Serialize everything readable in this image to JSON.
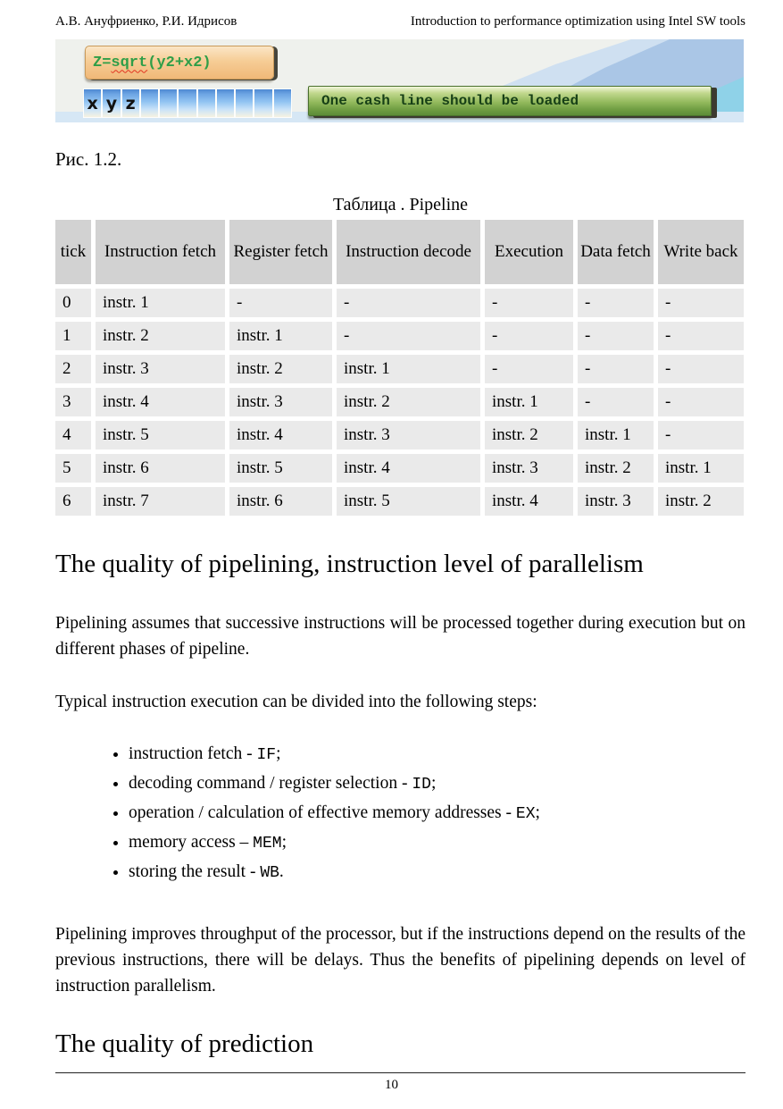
{
  "header": {
    "authors": "А.В. Ануфриенко, Р.И. Идрисов",
    "title": "Introduction to performance optimization using Intel SW tools"
  },
  "banner": {
    "formula": {
      "prefix": "Z=",
      "squiggle": "sqrt",
      "suffix": "(y2+x2)"
    },
    "memory_cells": [
      "x",
      "y",
      "z",
      "",
      "",
      "",
      "",
      "",
      "",
      "",
      ""
    ],
    "callout_label": "One cash line should be loaded",
    "colors": {
      "formula_bg": "#f0b878",
      "formula_text": "#2f9e48",
      "callout_green": "#6f9d42",
      "cell_blue": "#6ea6e4",
      "sky_blue": "#aac6e6"
    }
  },
  "figure_caption": "Рис. 1.2.",
  "pipeline_table": {
    "title": "Таблица . Pipeline",
    "columns": [
      "tick",
      "Instruction fetch",
      "Register fetch",
      "Instruction decode",
      "Execution",
      "Data fetch",
      "Write back"
    ],
    "rows": [
      [
        "0",
        "instr. 1",
        "-",
        "-",
        "-",
        "-",
        "-"
      ],
      [
        "1",
        "instr. 2",
        "instr. 1",
        "-",
        "-",
        "-",
        "-"
      ],
      [
        "2",
        "instr. 3",
        "instr. 2",
        "instr. 1",
        "-",
        "-",
        "-"
      ],
      [
        "3",
        "instr. 4",
        "instr. 3",
        "instr. 2",
        "instr. 1",
        "-",
        "-"
      ],
      [
        "4",
        "instr. 5",
        "instr. 4",
        "instr. 3",
        "instr. 2",
        "instr. 1",
        "-"
      ],
      [
        "5",
        "instr. 6",
        "instr. 5",
        "instr. 4",
        "instr. 3",
        "instr. 2",
        "instr. 1"
      ],
      [
        "6",
        "instr. 7",
        "instr. 6",
        "instr. 5",
        "instr. 4",
        "instr. 3",
        "instr. 2"
      ]
    ]
  },
  "section_pipelining": {
    "heading": "The quality of pipelining, instruction level of parallelism",
    "para1": "Pipelining assumes that successive instructions will be processed together during execution but on different phases of pipeline.",
    "para2": "Typical instruction execution can be divided into the following steps:",
    "steps": [
      {
        "text": "instruction fetch - ",
        "code": "IF",
        "suffix": ";"
      },
      {
        "text": "decoding command / register selection - ",
        "code": "ID",
        "suffix": ";"
      },
      {
        "text": "operation / calculation of effective memory addresses - ",
        "code": "EX",
        "suffix": ";"
      },
      {
        "text": "memory access – ",
        "code": "MEM",
        "suffix": ";"
      },
      {
        "text": "storing the result - ",
        "code": "WB",
        "suffix": "."
      }
    ],
    "para3": "Pipelining improves throughput of the processor, but if the instructions depend on the results of the previous instructions, there will be delays. Thus the benefits of pipelining depends on level of instruction parallelism."
  },
  "section_prediction": {
    "heading": "The quality of prediction"
  },
  "footer": {
    "page_number": "10"
  }
}
